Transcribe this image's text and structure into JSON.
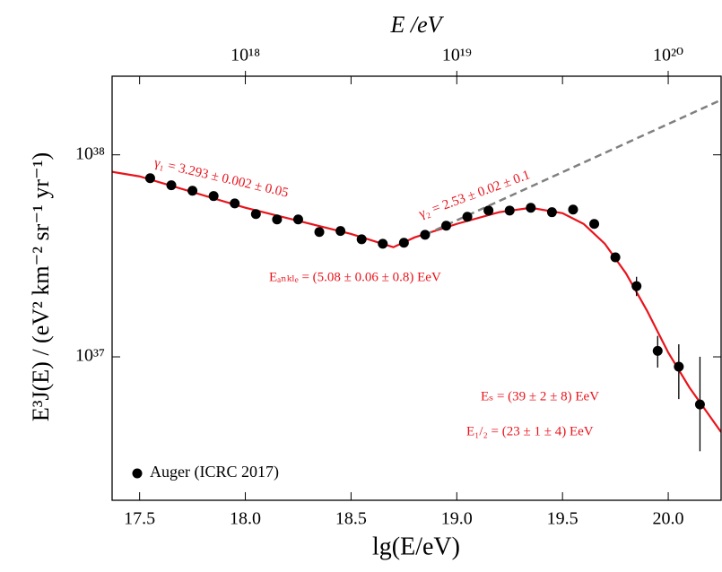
{
  "chart_data": {
    "type": "scatter",
    "x_label": "lg(E/eV)",
    "y_label": "E³J(E) / (eV² km⁻² sr⁻¹ yr⁻¹)",
    "x2_label": "E /eV",
    "xlim": [
      17.37,
      20.25
    ],
    "xticks": [
      17.5,
      {
        "value": 18,
        "label": "18.0"
      },
      18.5,
      {
        "value": 19,
        "label": "19.0"
      },
      19.5,
      {
        "value": 20,
        "label": "20.0"
      }
    ],
    "x2lim": [
      2.34e+17,
      1.78e+20
    ],
    "x2ticks": [
      {
        "value": 1e+18,
        "label": "10¹⁸"
      },
      {
        "value": 1e+19,
        "label": "10¹⁹"
      },
      {
        "value": 1e+20,
        "label": "10²⁰"
      }
    ],
    "x2scale": "log",
    "ylim": [
      1.95e+36,
      2.45e+38
    ],
    "yticks": [
      {
        "value": 1e+37,
        "label": "10³⁷"
      },
      {
        "value": 1e+38,
        "label": "10³⁸"
      }
    ],
    "yscale": "log",
    "legend": "lower left",
    "series": [
      {
        "name": "Auger (ICRC 2017)",
        "color": "#000000",
        "x": [
          17.55,
          17.65,
          17.75,
          17.85,
          17.95,
          18.05,
          18.15,
          18.25,
          18.35,
          18.45,
          18.55,
          18.65,
          18.75,
          18.85,
          18.95,
          19.05,
          19.15,
          19.25,
          19.35,
          19.45,
          19.55,
          19.65,
          19.75,
          19.85,
          19.95,
          20.05,
          20.15
        ],
        "values": [
          7.66e+37,
          7.07e+37,
          6.64e+37,
          6.25e+37,
          5.75e+37,
          5.09e+37,
          4.79e+37,
          4.79e+37,
          4.15e+37,
          4.2e+37,
          3.82e+37,
          3.63e+37,
          3.67e+37,
          4.02e+37,
          4.46e+37,
          4.94e+37,
          5.3e+37,
          5.3e+37,
          5.47e+37,
          5.2e+37,
          5.36e+37,
          4.55e+37,
          3.11e+37,
          2.24e+37,
          1.07e+37,
          8.94e+36,
          5.81e+36
        ],
        "errors_minus": [
          null,
          null,
          null,
          null,
          null,
          null,
          null,
          null,
          null,
          null,
          null,
          null,
          null,
          null,
          null,
          null,
          null,
          null,
          null,
          null,
          null,
          null,
          null,
          2.4e+36,
          1.85e+36,
          2.76e+36,
          2.4e+36
        ],
        "errors_plus": [
          null,
          null,
          null,
          null,
          null,
          null,
          null,
          null,
          null,
          null,
          null,
          null,
          null,
          null,
          null,
          null,
          null,
          null,
          null,
          null,
          null,
          null,
          null,
          2.5e+36,
          2e+36,
          2.6e+36,
          4.2e+36
        ]
      }
    ],
    "lines": [
      {
        "color": "#e8141c",
        "style": "solid",
        "x": [
          17.37,
          17.5,
          18.0,
          18.5,
          18.7,
          18.8,
          19.0,
          19.2,
          19.35,
          19.5,
          19.6,
          19.7,
          19.8,
          19.9,
          20.0,
          20.1,
          20.25
        ],
        "values": [
          8.24e+37,
          7.82e+37,
          5.47e+37,
          4.06e+37,
          3.49e+37,
          3.9e+37,
          4.55e+37,
          5.2e+37,
          5.47e+37,
          5.14e+37,
          4.55e+37,
          3.63e+37,
          2.59e+37,
          1.69e+37,
          1.05e+37,
          7.06e+36,
          4.24e+36
        ]
      },
      {
        "color": "#808080",
        "style": "dashed",
        "x": [
          18.85,
          20.25
        ],
        "values": [
          4.02e+37,
          1.87e+38
        ]
      }
    ],
    "annotations": [
      "γ₁ = 3.293 ± 0.002 ± 0.05",
      "γ₂ = 2.53 ± 0.02 ± 0.1",
      "Eₐₙₖₗₑ = (5.08 ± 0.06 ± 0.8) EeV",
      "Eₛ = (39 ± 2 ± 8) EeV",
      "E₁/₂ = (23 ± 1 ± 4) EeV"
    ]
  }
}
